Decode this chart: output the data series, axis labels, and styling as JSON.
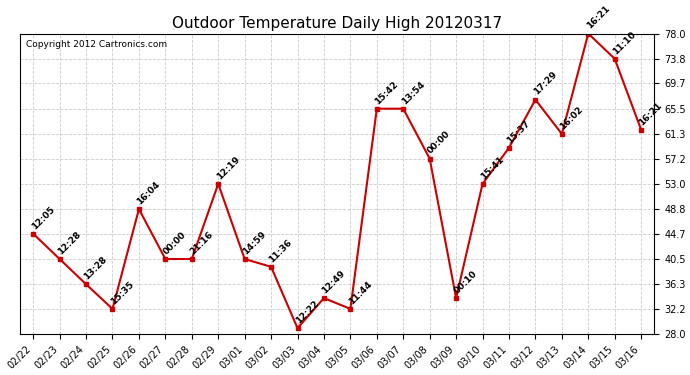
{
  "title": "Outdoor Temperature Daily High 20120317",
  "copyright": "Copyright 2012 Cartronics.com",
  "dates": [
    "02/22",
    "02/23",
    "02/24",
    "02/25",
    "02/26",
    "02/27",
    "02/28",
    "02/29",
    "03/01",
    "03/02",
    "03/03",
    "03/04",
    "03/05",
    "03/06",
    "03/07",
    "03/08",
    "03/09",
    "03/10",
    "03/11",
    "03/12",
    "03/13",
    "03/14",
    "03/15",
    "03/16"
  ],
  "values": [
    44.7,
    40.5,
    36.3,
    32.2,
    48.8,
    40.5,
    40.5,
    53.0,
    40.5,
    39.2,
    29.0,
    34.0,
    32.2,
    65.5,
    65.5,
    57.2,
    34.0,
    53.0,
    59.0,
    67.0,
    61.3,
    78.0,
    73.8,
    62.0
  ],
  "time_labels": [
    "12:05",
    "12:28",
    "13:28",
    "15:35",
    "16:04",
    "00:00",
    "21:16",
    "12:19",
    "14:59",
    "11:36",
    "12:22",
    "12:49",
    "11:44",
    "15:42",
    "13:54",
    "00:00",
    "00:10",
    "15:41",
    "15:37",
    "17:29",
    "16:02",
    "16:21",
    "11:10",
    "16:21"
  ],
  "yticks": [
    28.0,
    32.2,
    36.3,
    40.5,
    44.7,
    48.8,
    53.0,
    57.2,
    61.3,
    65.5,
    69.7,
    73.8,
    78.0
  ],
  "line_color": "#cc0000",
  "marker_color": "#cc0000",
  "bg_color": "#ffffff",
  "grid_color": "#cccccc",
  "title_fontsize": 11,
  "label_fontsize": 6.5,
  "tick_fontsize": 7,
  "copyright_fontsize": 6.5
}
